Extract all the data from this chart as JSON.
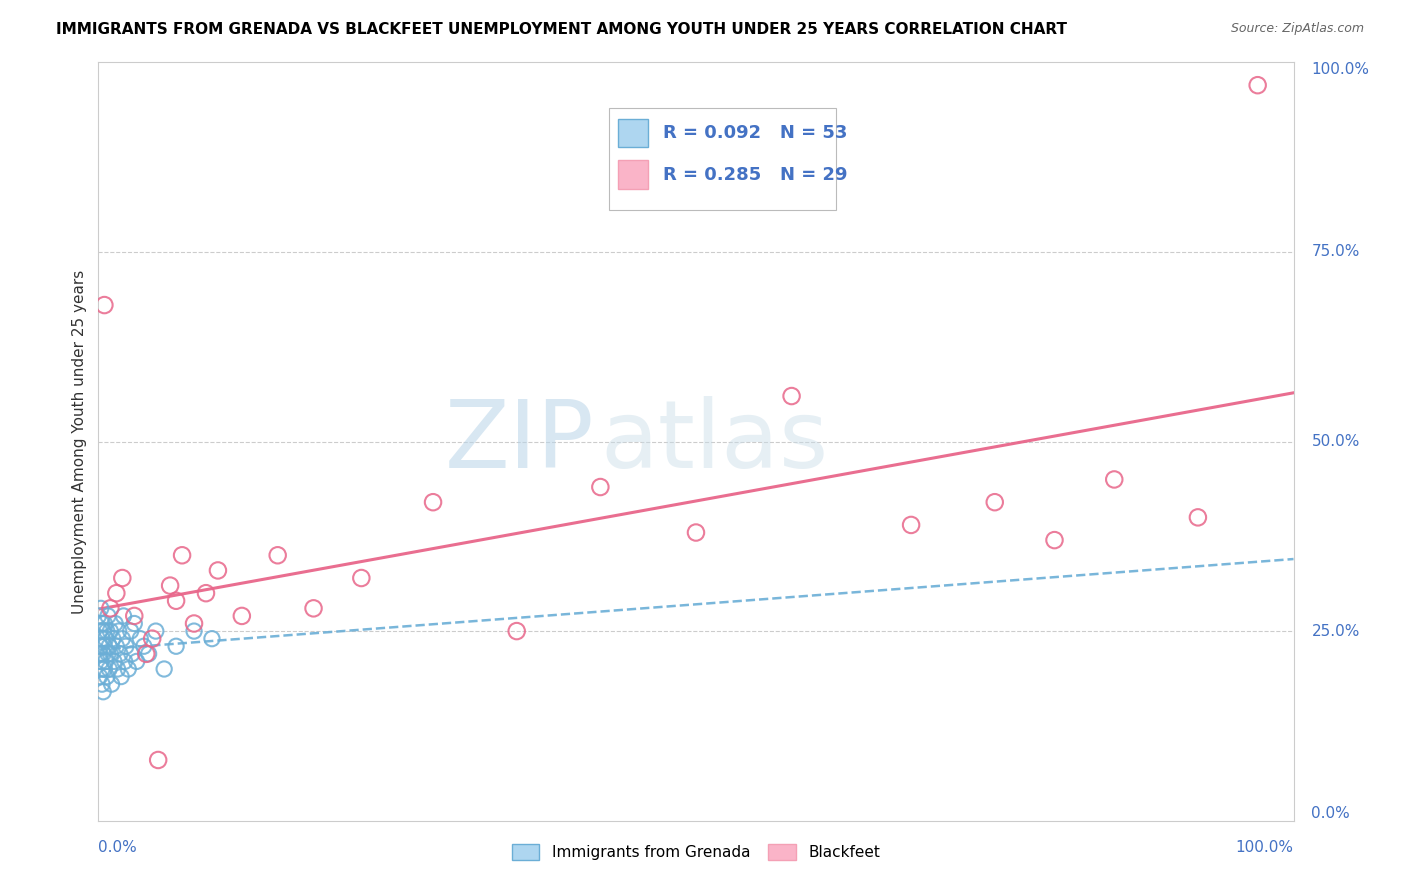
{
  "title": "IMMIGRANTS FROM GRENADA VS BLACKFEET UNEMPLOYMENT AMONG YOUTH UNDER 25 YEARS CORRELATION CHART",
  "source": "Source: ZipAtlas.com",
  "ylabel": "Unemployment Among Youth under 25 years",
  "legend_bottom": [
    "Immigrants from Grenada",
    "Blackfeet"
  ],
  "series1": {
    "name": "Immigrants from Grenada",
    "color": "#6baed6",
    "R": 0.092,
    "N": 53,
    "x": [
      0.0,
      0.001,
      0.001,
      0.001,
      0.002,
      0.002,
      0.002,
      0.003,
      0.003,
      0.003,
      0.003,
      0.004,
      0.004,
      0.004,
      0.005,
      0.005,
      0.005,
      0.006,
      0.006,
      0.007,
      0.007,
      0.008,
      0.008,
      0.009,
      0.009,
      0.01,
      0.01,
      0.011,
      0.012,
      0.013,
      0.014,
      0.015,
      0.016,
      0.017,
      0.018,
      0.019,
      0.02,
      0.021,
      0.022,
      0.023,
      0.025,
      0.027,
      0.028,
      0.03,
      0.032,
      0.035,
      0.038,
      0.042,
      0.048,
      0.055,
      0.065,
      0.08,
      0.095
    ],
    "y": [
      0.27,
      0.25,
      0.22,
      0.19,
      0.23,
      0.21,
      0.28,
      0.24,
      0.26,
      0.2,
      0.18,
      0.22,
      0.25,
      0.17,
      0.23,
      0.26,
      0.2,
      0.24,
      0.21,
      0.25,
      0.19,
      0.22,
      0.27,
      0.23,
      0.2,
      0.25,
      0.22,
      0.18,
      0.24,
      0.21,
      0.26,
      0.23,
      0.2,
      0.25,
      0.22,
      0.19,
      0.24,
      0.27,
      0.21,
      0.23,
      0.2,
      0.25,
      0.22,
      0.26,
      0.21,
      0.24,
      0.23,
      0.22,
      0.25,
      0.2,
      0.23,
      0.25,
      0.24
    ]
  },
  "series2": {
    "name": "Blackfeet",
    "color": "#f4a0b5",
    "R": 0.285,
    "N": 29,
    "x": [
      0.005,
      0.01,
      0.015,
      0.02,
      0.03,
      0.04,
      0.045,
      0.05,
      0.06,
      0.065,
      0.07,
      0.08,
      0.09,
      0.1,
      0.12,
      0.15,
      0.18,
      0.22,
      0.28,
      0.35,
      0.42,
      0.5,
      0.58,
      0.68,
      0.75,
      0.8,
      0.85,
      0.92,
      0.97
    ],
    "y": [
      0.68,
      0.28,
      0.3,
      0.32,
      0.27,
      0.22,
      0.24,
      0.08,
      0.31,
      0.29,
      0.35,
      0.26,
      0.3,
      0.33,
      0.27,
      0.35,
      0.28,
      0.32,
      0.42,
      0.25,
      0.44,
      0.38,
      0.56,
      0.39,
      0.42,
      0.37,
      0.45,
      0.4,
      0.97
    ]
  },
  "trend1_color": "#6baed6",
  "trend2_color": "#e8668a",
  "axis_label_color": "#4472c4",
  "title_fontsize": 11,
  "watermark_zip": "ZIP",
  "watermark_atlas": "atlas"
}
